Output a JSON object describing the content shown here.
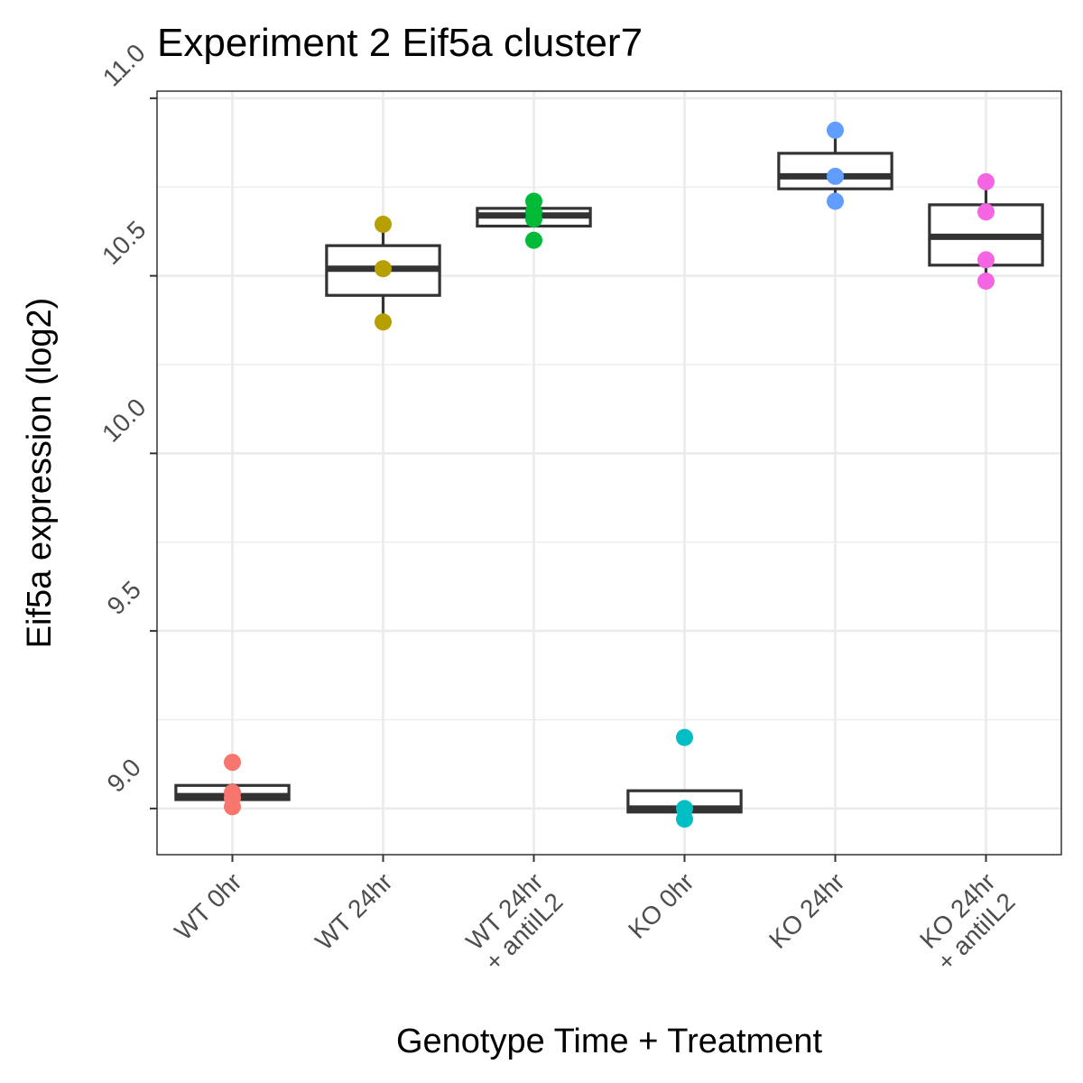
{
  "chart_data": {
    "type": "box",
    "title": "Experiment 2 Eif5a cluster7",
    "xlabel": "Genotype Time + Treatment",
    "ylabel": "Eif5a expression (log2)",
    "ylim": [
      8.87,
      11.02
    ],
    "yticks": [
      9.0,
      9.5,
      10.0,
      10.5,
      11.0
    ],
    "ytick_labels": [
      "9.0",
      "9.5",
      "10.0",
      "10.5",
      "11.0"
    ],
    "grid": true,
    "legend": "none",
    "groups": [
      {
        "label_lines": [
          "WT 0hr"
        ],
        "color": "#F8766D",
        "box": {
          "q1": 9.025,
          "median": 9.035,
          "q3": 9.065,
          "whisker_low": 9.0,
          "whisker_high": 9.07
        },
        "points": [
          9.13,
          9.045,
          9.03,
          9.005
        ]
      },
      {
        "label_lines": [
          "WT 24hr"
        ],
        "color": "#B79F00",
        "box": {
          "q1": 10.445,
          "median": 10.52,
          "q3": 10.585,
          "whisker_low": 10.37,
          "whisker_high": 10.645
        },
        "points": [
          10.645,
          10.52,
          10.37
        ]
      },
      {
        "label_lines": [
          "WT 24hr",
          "+ antiIL2"
        ],
        "color": "#00BA38",
        "box": {
          "q1": 10.64,
          "median": 10.67,
          "q3": 10.69,
          "whisker_low": 10.64,
          "whisker_high": 10.69
        },
        "points": [
          10.71,
          10.68,
          10.66,
          10.6
        ]
      },
      {
        "label_lines": [
          "KO 0hr"
        ],
        "color": "#00BFC4",
        "box": {
          "q1": 8.99,
          "median": 9.0,
          "q3": 9.05,
          "whisker_low": 8.99,
          "whisker_high": 9.05
        },
        "points": [
          9.2,
          9.0,
          8.97
        ]
      },
      {
        "label_lines": [
          "KO 24hr"
        ],
        "color": "#619CFF",
        "box": {
          "q1": 10.745,
          "median": 10.78,
          "q3": 10.845,
          "whisker_low": 10.71,
          "whisker_high": 10.91
        },
        "points": [
          10.91,
          10.78,
          10.71
        ]
      },
      {
        "label_lines": [
          "KO 24hr",
          "+ antiIL2"
        ],
        "color": "#F564E3",
        "box": {
          "q1": 10.53,
          "median": 10.61,
          "q3": 10.7,
          "whisker_low": 10.485,
          "whisker_high": 10.765
        },
        "points": [
          10.765,
          10.68,
          10.545,
          10.485
        ]
      }
    ]
  }
}
